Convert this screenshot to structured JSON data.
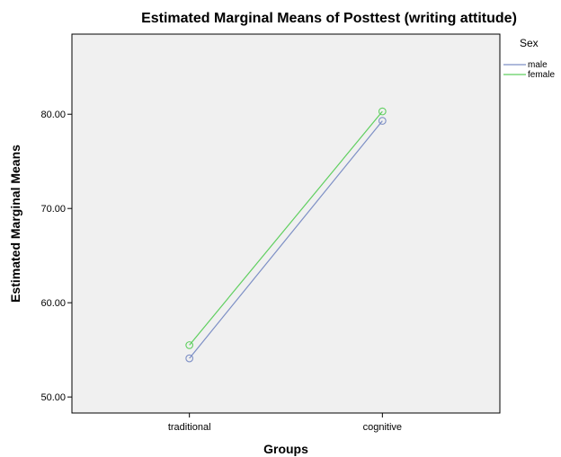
{
  "chart_data": {
    "type": "line",
    "title": "Estimated Marginal Means of Posttest (writing attitude)",
    "xlabel": "Groups",
    "ylabel": "Estimated Marginal Means",
    "categories": [
      "traditional",
      "cognitive"
    ],
    "ylim": [
      48.3,
      88.5
    ],
    "yticks": [
      "50.00",
      "60.00",
      "70.00",
      "80.00"
    ],
    "grid": false,
    "legend_title": "Sex",
    "legend_position": "top-right",
    "series": [
      {
        "name": "male",
        "values": [
          54.1,
          79.3
        ],
        "color": "#7d8fc5"
      },
      {
        "name": "female",
        "values": [
          55.5,
          80.3
        ],
        "color": "#5fcf5f"
      }
    ],
    "plot_background": "#f0f0f0"
  }
}
